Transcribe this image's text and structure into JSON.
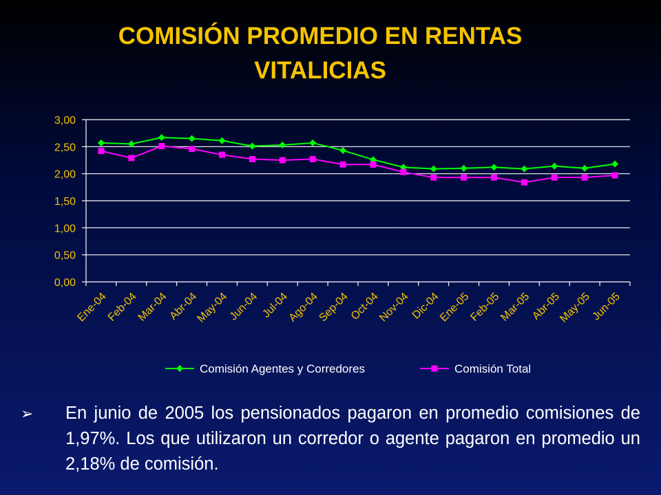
{
  "slide": {
    "title_line1": "COMISIÓN PROMEDIO EN RENTAS",
    "title_line2": "VITALICIAS",
    "bullet_symbol": "➢",
    "bullet_text": "En junio de 2005 los pensionados pagaron en promedio comisiones de 1,97%. Los que utilizaron un corredor o agente pagaron en promedio un 2,18% de comisión."
  },
  "colors": {
    "title": "#f5c400",
    "axis_text": "#f5c400",
    "series_agents": "#00ff00",
    "series_total": "#ff00ff",
    "grid": "#ffffff"
  },
  "chart_data": {
    "type": "line",
    "categories": [
      "Ene-04",
      "Feb-04",
      "Mar-04",
      "Abr-04",
      "May-04",
      "Jun-04",
      "Jul-04",
      "Ago-04",
      "Sep-04",
      "Oct-04",
      "Nov-04",
      "Dic-04",
      "Ene-05",
      "Feb-05",
      "Mar-05",
      "Abr-05",
      "May-05",
      "Jun-05"
    ],
    "series": [
      {
        "name": "Comisión Agentes y Corredores",
        "values": [
          2.57,
          2.55,
          2.67,
          2.65,
          2.61,
          2.51,
          2.53,
          2.57,
          2.43,
          2.26,
          2.12,
          2.09,
          2.1,
          2.12,
          2.09,
          2.14,
          2.1,
          2.18
        ]
      },
      {
        "name": "Comisión Total",
        "values": [
          2.42,
          2.29,
          2.51,
          2.46,
          2.35,
          2.27,
          2.25,
          2.27,
          2.17,
          2.17,
          2.03,
          1.93,
          1.93,
          1.93,
          1.84,
          1.93,
          1.93,
          1.97
        ]
      }
    ],
    "y_ticks": [
      "0,00",
      "0,50",
      "1,00",
      "1,50",
      "2,00",
      "2,50",
      "3,00"
    ],
    "ylim": [
      0,
      3
    ],
    "grid": true,
    "legend_position": "bottom"
  }
}
